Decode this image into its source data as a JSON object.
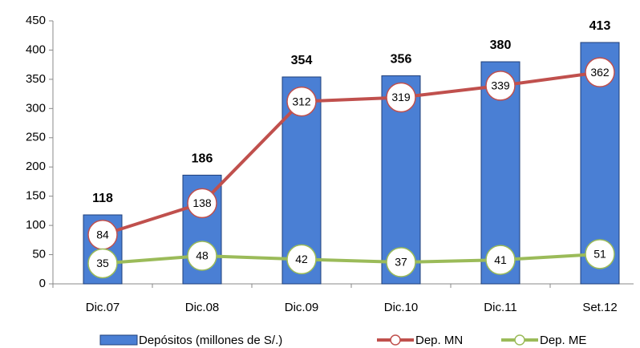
{
  "chart_data": {
    "type": "bar",
    "categories": [
      "Dic.07",
      "Dic.08",
      "Dic.09",
      "Dic.10",
      "Dic.11",
      "Set.12"
    ],
    "series": [
      {
        "name": "Depósitos (millones de S/.)",
        "type": "bar",
        "color": "#4a7fd4",
        "values": [
          118,
          186,
          354,
          356,
          380,
          413
        ]
      },
      {
        "name": "Dep. MN",
        "type": "line",
        "color": "#c0504d",
        "values": [
          84,
          138,
          312,
          319,
          339,
          362
        ]
      },
      {
        "name": "Dep. ME",
        "type": "line",
        "color": "#9bbb59",
        "values": [
          35,
          48,
          42,
          37,
          41,
          51
        ]
      }
    ],
    "ylim": [
      0,
      450
    ],
    "yticks": [
      0,
      50,
      100,
      150,
      200,
      250,
      300,
      350,
      400,
      450
    ],
    "grid": false,
    "legend": "bottom"
  }
}
